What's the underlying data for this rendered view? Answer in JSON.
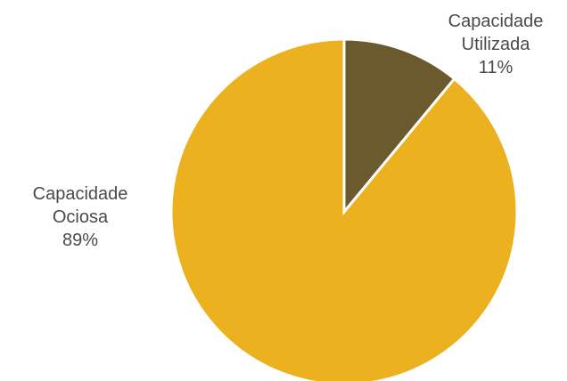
{
  "chart_data": {
    "type": "pie",
    "title": "",
    "start_angle_deg": 0,
    "direction": "clockwise",
    "slices": [
      {
        "label_lines": [
          "Capacidade",
          "Utilizada"
        ],
        "value": 11,
        "value_label": "11%",
        "color": "#6b5a2d"
      },
      {
        "label_lines": [
          "Capacidade",
          "Ociosa"
        ],
        "value": 89,
        "value_label": "89%",
        "color": "#ebb11f"
      }
    ]
  }
}
